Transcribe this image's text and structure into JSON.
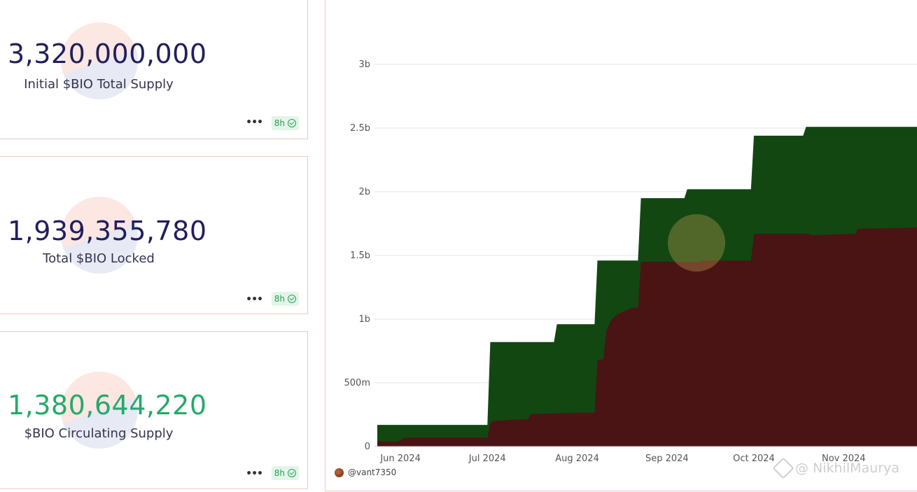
{
  "cards": [
    {
      "value": "3,320,000,000",
      "label": "Initial $BIO Total Supply",
      "badge": "8h",
      "menu": "•••"
    },
    {
      "value": "1,939,355,780",
      "label": "Total $BIO Locked",
      "badge": "8h",
      "menu": "•••"
    },
    {
      "value": "1,380,644,220",
      "label": "$BIO Circulating Supply",
      "badge": "8h",
      "menu": "•••"
    }
  ],
  "colors": {
    "card_value": "#211f5c",
    "circulating_value": "#28a86a",
    "series_lower": "#4a1414",
    "series_upper": "#124712",
    "grid": "#e6e6e6"
  },
  "footer": {
    "username": "@vant7350"
  },
  "watermark": {
    "text": "@ NikhilMaurya"
  },
  "chart_data": {
    "type": "area",
    "stacked": true,
    "x_start": "2024-05-24",
    "x_end": "2024-11-28",
    "x_tick_labels": [
      "Jun 2024",
      "Jul 2024",
      "Aug 2024",
      "Sep 2024",
      "Oct 2024",
      "Nov 2024"
    ],
    "x_ticks": [
      "2024-06-01",
      "2024-07-01",
      "2024-08-01",
      "2024-09-01",
      "2024-10-01",
      "2024-11-01"
    ],
    "y_tick_labels": [
      "0",
      "500m",
      "1b",
      "1.5b",
      "2b",
      "2.5b",
      "3b"
    ],
    "y_ticks": [
      0,
      500000000,
      1000000000,
      1500000000,
      2000000000,
      2500000000,
      3000000000
    ],
    "ylim": [
      0,
      3000000000
    ],
    "grid": true,
    "series": [
      {
        "points": [
          [
            "2024-05-24",
            40000000
          ],
          [
            "2024-05-31",
            40000000
          ],
          [
            "2024-06-01",
            50000000
          ],
          [
            "2024-06-02",
            65000000
          ],
          [
            "2024-06-03",
            70000000
          ],
          [
            "2024-07-01",
            70000000
          ],
          [
            "2024-07-02",
            180000000
          ],
          [
            "2024-07-03",
            200000000
          ],
          [
            "2024-07-10",
            210000000
          ],
          [
            "2024-07-15",
            215000000
          ],
          [
            "2024-07-16",
            255000000
          ],
          [
            "2024-07-24",
            260000000
          ],
          [
            "2024-08-01",
            265000000
          ],
          [
            "2024-08-07",
            265000000
          ],
          [
            "2024-08-08",
            680000000
          ],
          [
            "2024-08-10",
            685000000
          ],
          [
            "2024-08-11",
            900000000
          ],
          [
            "2024-08-12",
            960000000
          ],
          [
            "2024-08-13",
            1000000000
          ],
          [
            "2024-08-15",
            1040000000
          ],
          [
            "2024-08-17",
            1060000000
          ],
          [
            "2024-08-18",
            1070000000
          ],
          [
            "2024-08-20",
            1090000000
          ],
          [
            "2024-08-22",
            1090000000
          ],
          [
            "2024-08-23",
            1450000000
          ],
          [
            "2024-09-12",
            1450000000
          ],
          [
            "2024-09-13",
            1460000000
          ],
          [
            "2024-09-30",
            1460000000
          ],
          [
            "2024-10-01",
            1670000000
          ],
          [
            "2024-10-20",
            1670000000
          ],
          [
            "2024-10-21",
            1660000000
          ],
          [
            "2024-11-05",
            1670000000
          ],
          [
            "2024-11-06",
            1710000000
          ],
          [
            "2024-11-28",
            1720000000
          ]
        ]
      },
      {
        "points": [
          [
            "2024-05-24",
            170000000
          ],
          [
            "2024-07-01",
            170000000
          ],
          [
            "2024-07-02",
            820000000
          ],
          [
            "2024-07-24",
            820000000
          ],
          [
            "2024-07-25",
            960000000
          ],
          [
            "2024-08-07",
            960000000
          ],
          [
            "2024-08-08",
            1460000000
          ],
          [
            "2024-08-22",
            1460000000
          ],
          [
            "2024-08-23",
            1950000000
          ],
          [
            "2024-09-07",
            1950000000
          ],
          [
            "2024-09-08",
            2020000000
          ],
          [
            "2024-09-30",
            2020000000
          ],
          [
            "2024-10-01",
            2440000000
          ],
          [
            "2024-10-18",
            2440000000
          ],
          [
            "2024-10-19",
            2510000000
          ],
          [
            "2024-11-28",
            2510000000
          ]
        ]
      }
    ]
  }
}
